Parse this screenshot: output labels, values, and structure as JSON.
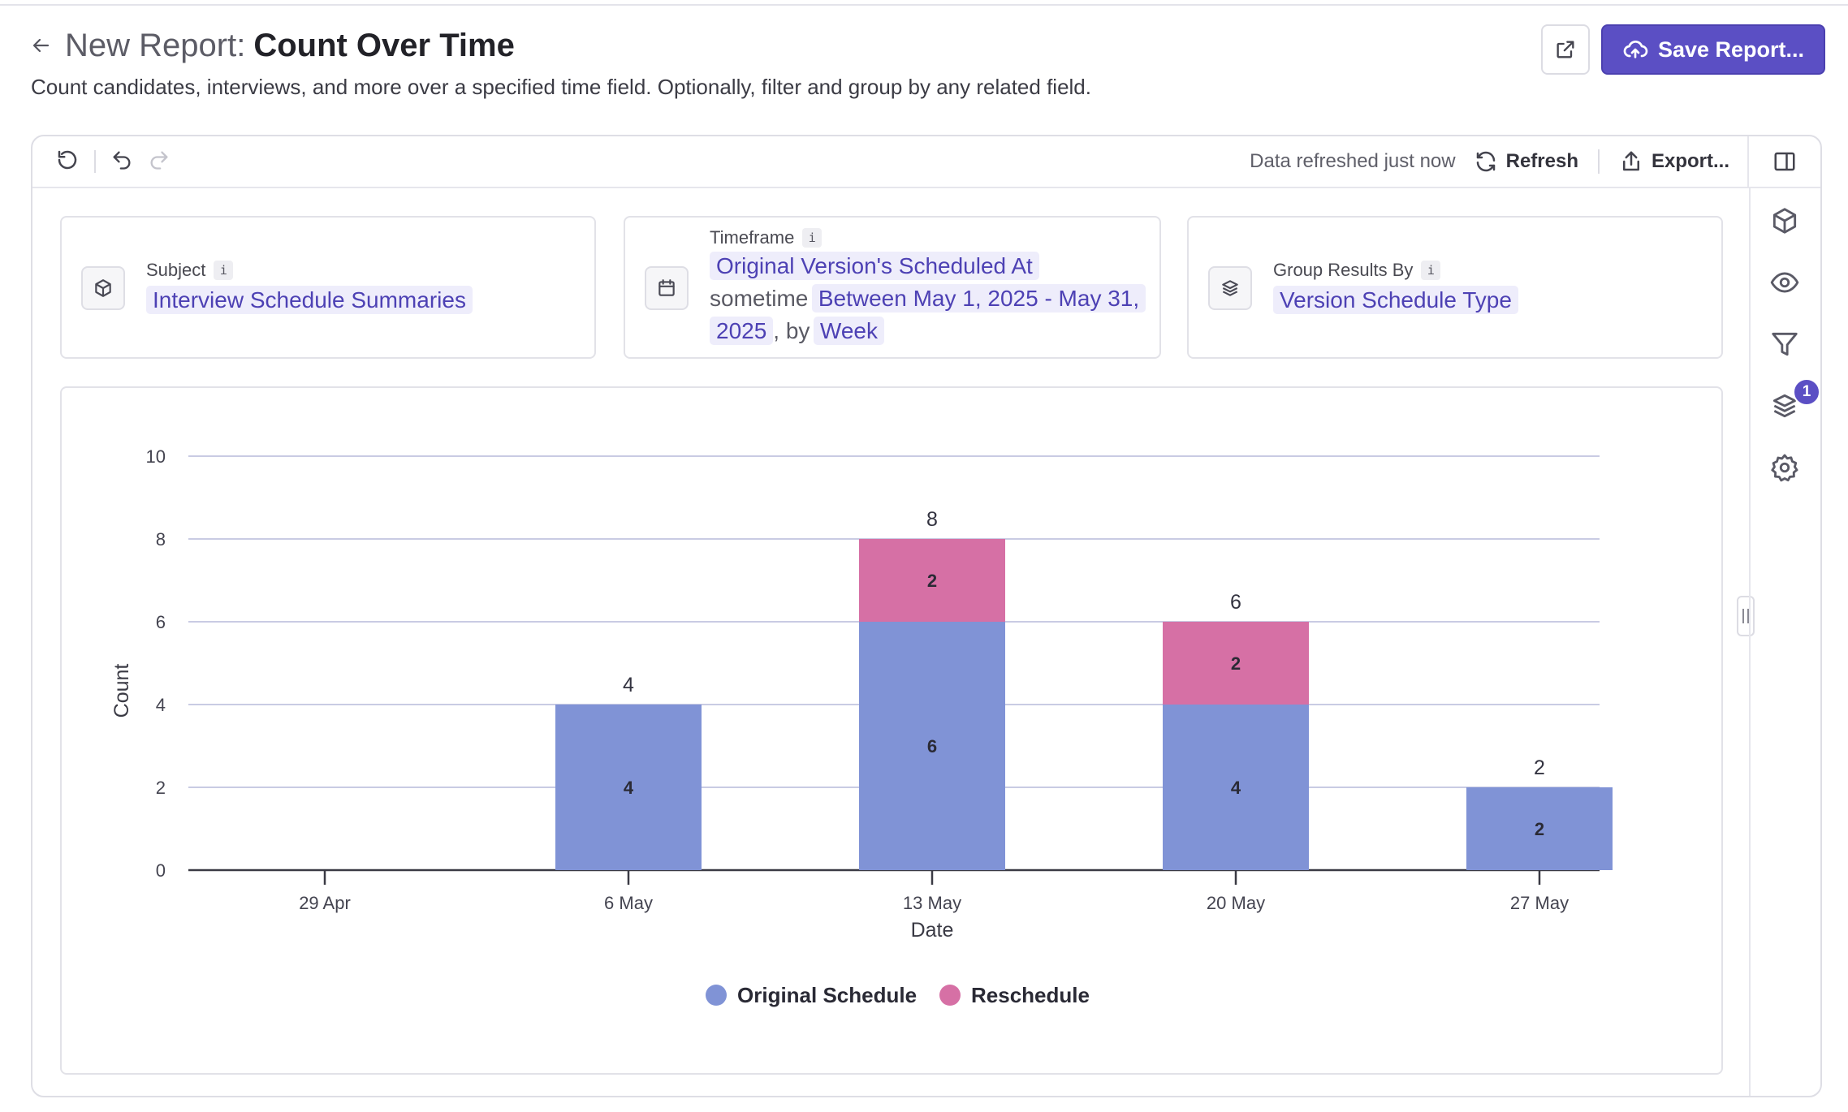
{
  "header": {
    "back_label": "←",
    "title_prefix": "New Report:",
    "title": "Count Over Time",
    "subtitle": "Count candidates, interviews, and more over a specified time field. Optionally, filter and group by any related field.",
    "save_label": "Save Report..."
  },
  "toolbar": {
    "status": "Data refreshed just now",
    "refresh_label": "Refresh",
    "export_label": "Export..."
  },
  "config": {
    "subject": {
      "label": "Subject",
      "info": "i",
      "value": "Interview Schedule Summaries"
    },
    "timeframe": {
      "label": "Timeframe",
      "info": "i",
      "field": "Original Version's Scheduled At",
      "qualifier": "sometime",
      "range": "Between May 1, 2025 - May 31, 2025",
      "by_text": ", by",
      "granularity": "Week"
    },
    "group_by": {
      "label": "Group Results By",
      "info": "i",
      "value": "Version Schedule Type"
    }
  },
  "side_rail": {
    "items": [
      "cube-icon",
      "eye-icon",
      "filter-icon",
      "layers-icon",
      "gear-icon"
    ],
    "layers_badge": "1"
  },
  "colors": {
    "accent": "#5b4fc4",
    "original_schedule": "#8093d6",
    "reschedule": "#d670a5"
  },
  "chart_data": {
    "type": "bar",
    "stacked": true,
    "categories": [
      "29 Apr",
      "6 May",
      "13 May",
      "20 May",
      "27 May"
    ],
    "series": [
      {
        "name": "Original Schedule",
        "values": [
          0,
          4,
          6,
          4,
          2
        ],
        "color": "#8093d6"
      },
      {
        "name": "Reschedule",
        "values": [
          0,
          0,
          2,
          2,
          0
        ],
        "color": "#d670a5"
      }
    ],
    "totals": [
      0,
      4,
      8,
      6,
      2
    ],
    "xlabel": "Date",
    "ylabel": "Count",
    "ylim": [
      0,
      10
    ],
    "yticks": [
      0,
      2,
      4,
      6,
      8,
      10
    ],
    "grid": true,
    "legend_position": "bottom-center"
  }
}
